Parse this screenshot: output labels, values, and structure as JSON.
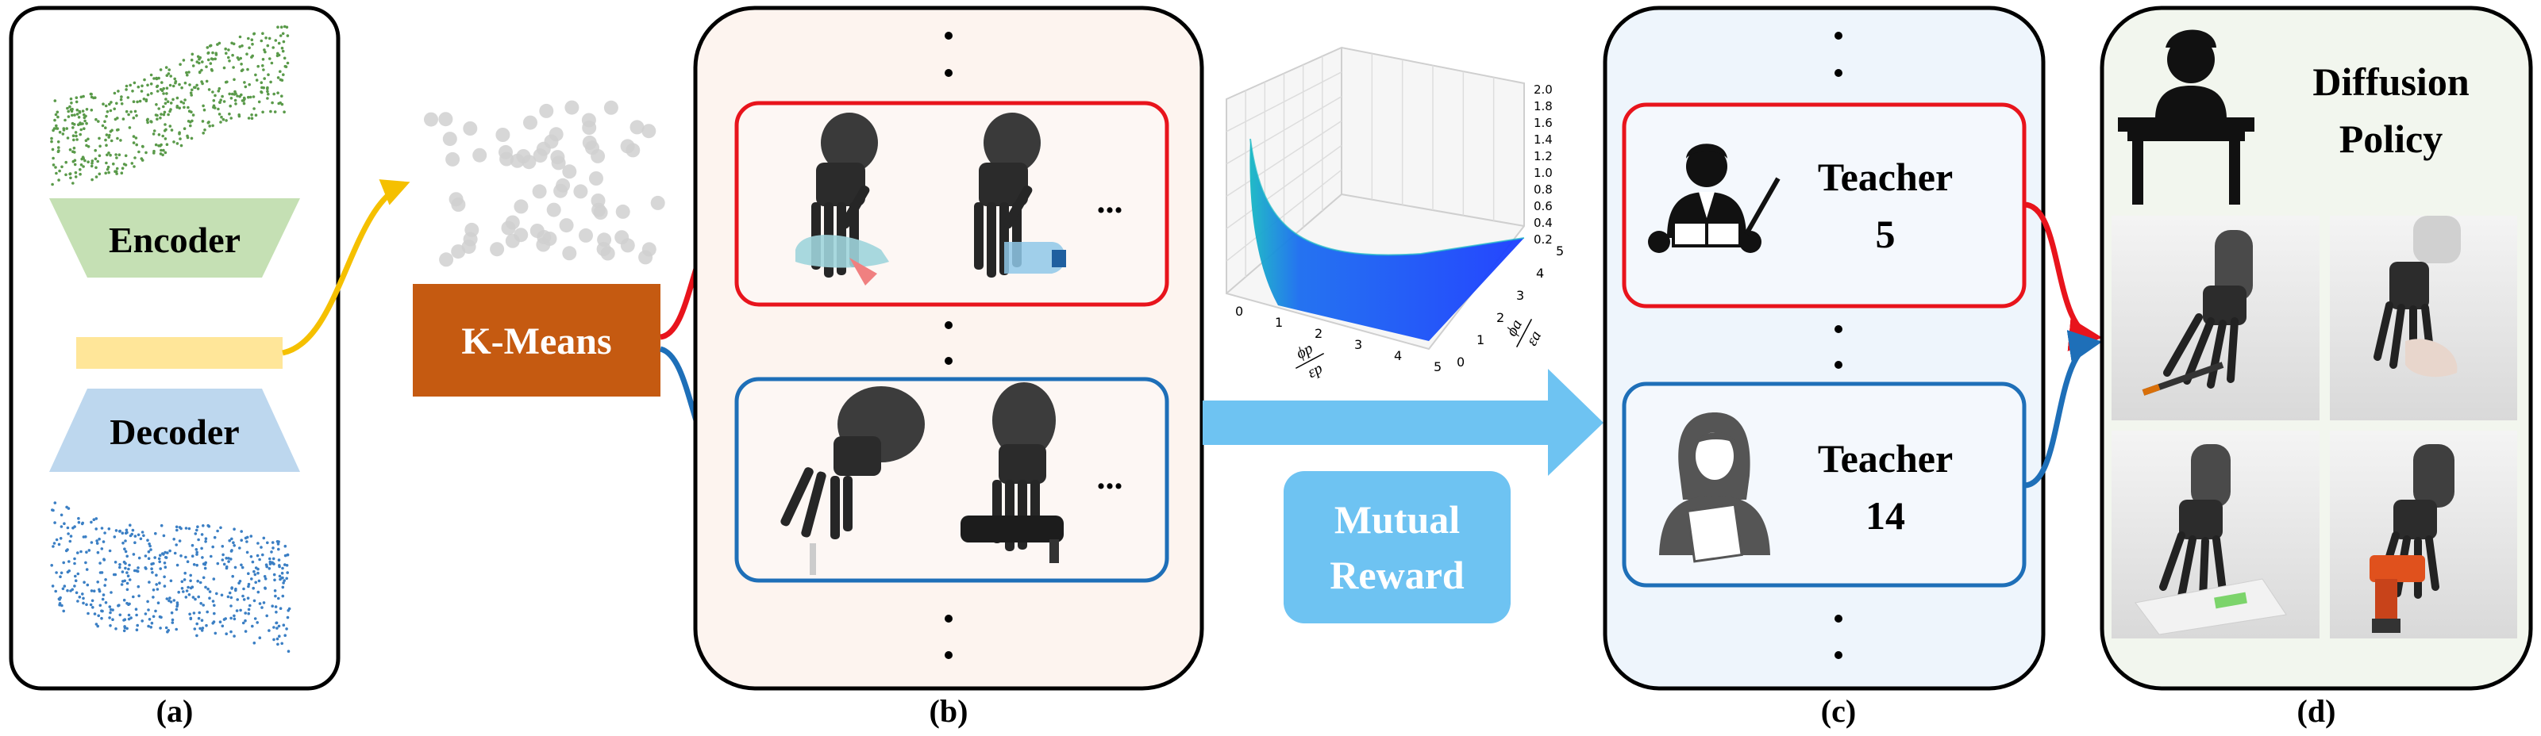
{
  "panel_a": {
    "encoder_label": "Encoder",
    "decoder_label": "Decoder",
    "caption": "(a)"
  },
  "kmeans": {
    "label": "K-Means"
  },
  "panel_b": {
    "ellipsis_top": "...",
    "ellipsis_bottom": "...",
    "caption": "(b)"
  },
  "plot": {
    "z_ticks": [
      "2.0",
      "1.8",
      "1.6",
      "1.4",
      "1.2",
      "1.0",
      "0.8",
      "0.6",
      "0.4",
      "0.2"
    ],
    "x_ticks": [
      "0",
      "1",
      "2",
      "3",
      "4",
      "5"
    ],
    "y_ticks": [
      "0",
      "1",
      "2",
      "3",
      "4",
      "5"
    ],
    "x_label_num": "ϕp",
    "x_label_den": "εp",
    "y_label_num": "ϕa",
    "y_label_den": "εa"
  },
  "mutual_reward": {
    "line1": "Mutual",
    "line2": "Reward"
  },
  "panel_c": {
    "teacher_top_line1": "Teacher",
    "teacher_top_line2": "5",
    "teacher_bottom_line1": "Teacher",
    "teacher_bottom_line2": "14",
    "caption": "(c)"
  },
  "panel_d": {
    "title_line1": "Diffusion",
    "title_line2": "Policy",
    "caption": "(d)"
  },
  "colors": {
    "red": "#e8141c",
    "blue": "#1e6fb8",
    "encoder_green": "#c5e0b4",
    "decoder_blue": "#bdd7ee",
    "latent_yellow": "#ffe699",
    "kmeans_orange": "#c55a11",
    "panel_b_bg": "#fdf4ef",
    "panel_c_bg": "#eef5fc",
    "panel_d_bg": "#f2f6ee",
    "arrow_light_blue": "#6ec3f2",
    "surface_blue": "#1a3cff",
    "surface_cyan": "#17b8c4",
    "gold_arrow": "#f5c000"
  }
}
